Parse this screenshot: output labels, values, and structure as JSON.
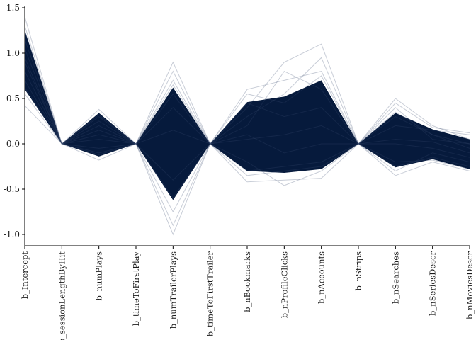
{
  "chart_data": {
    "type": "line",
    "subtype": "parallel-coordinates",
    "title": "",
    "xlabel": "",
    "ylabel": "",
    "ylim": [
      -1.12,
      1.55
    ],
    "yticks": [
      -1.0,
      -0.5,
      0.0,
      0.5,
      1.0,
      1.5
    ],
    "ytick_labels": [
      "-1.0",
      "-0.5",
      "0.0",
      "0.5",
      "1.0",
      "1.5"
    ],
    "grid": false,
    "legend": "none",
    "line_color": "#061a3c",
    "categories": [
      "b_Intercept",
      "b_sessionLengthByHit",
      "b_numPlays",
      "b_timeToFirstPlay",
      "b_numTrailerPlays",
      "b_timeToFirstTrailer",
      "b_nBookmarks",
      "b_nProfileClicks",
      "b_nAccounts",
      "b_nStrips",
      "b_nSearches",
      "b_nSeriesDescr",
      "b_nMoviesDescr"
    ],
    "series": [
      {
        "values": [
          0.95,
          0.0,
          0.1,
          0.0,
          0.15,
          0.0,
          0.05,
          0.1,
          0.2,
          0.0,
          0.05,
          0.02,
          -0.1
        ]
      },
      {
        "values": [
          1.4,
          0.0,
          0.38,
          0.0,
          0.9,
          0.0,
          0.6,
          0.7,
          0.8,
          0.0,
          0.45,
          0.18,
          0.12
        ]
      },
      {
        "values": [
          0.42,
          0.0,
          -0.18,
          0.0,
          -0.9,
          0.0,
          -0.42,
          -0.4,
          -0.38,
          0.0,
          -0.35,
          -0.2,
          -0.3
        ]
      },
      {
        "values": [
          1.15,
          0.0,
          0.3,
          0.0,
          0.55,
          0.0,
          0.4,
          0.9,
          1.1,
          0.0,
          0.5,
          0.2,
          0.05
        ]
      },
      {
        "values": [
          0.7,
          0.0,
          -0.1,
          0.0,
          -0.6,
          0.0,
          -0.2,
          -0.46,
          -0.3,
          0.0,
          -0.25,
          -0.15,
          -0.25
        ]
      },
      {
        "values": [
          1.25,
          0.0,
          0.2,
          0.0,
          0.8,
          0.0,
          0.3,
          0.55,
          0.95,
          0.0,
          0.3,
          0.1,
          0.0
        ]
      },
      {
        "values": [
          0.55,
          0.0,
          -0.05,
          0.0,
          -1.0,
          0.0,
          -0.3,
          -0.25,
          -0.2,
          0.0,
          -0.3,
          -0.1,
          -0.2
        ]
      },
      {
        "values": [
          0.8,
          0.0,
          0.15,
          0.0,
          0.4,
          0.0,
          0.2,
          0.8,
          0.6,
          0.0,
          0.2,
          0.15,
          0.1
        ]
      },
      {
        "values": [
          1.05,
          0.0,
          0.25,
          0.0,
          -0.4,
          0.0,
          0.45,
          0.3,
          0.4,
          0.0,
          0.35,
          0.1,
          -0.05
        ]
      },
      {
        "values": [
          0.62,
          0.0,
          -0.12,
          0.0,
          0.65,
          0.0,
          -0.35,
          -0.3,
          -0.25,
          0.0,
          -0.2,
          -0.18,
          -0.28
        ]
      },
      {
        "values": [
          1.3,
          0.0,
          0.32,
          0.0,
          0.7,
          0.0,
          0.55,
          0.45,
          0.75,
          0.0,
          0.4,
          0.05,
          0.0
        ]
      },
      {
        "values": [
          0.9,
          0.0,
          0.05,
          0.0,
          -0.75,
          0.0,
          0.1,
          -0.1,
          0.0,
          0.0,
          0.0,
          -0.05,
          -0.15
        ]
      }
    ]
  }
}
